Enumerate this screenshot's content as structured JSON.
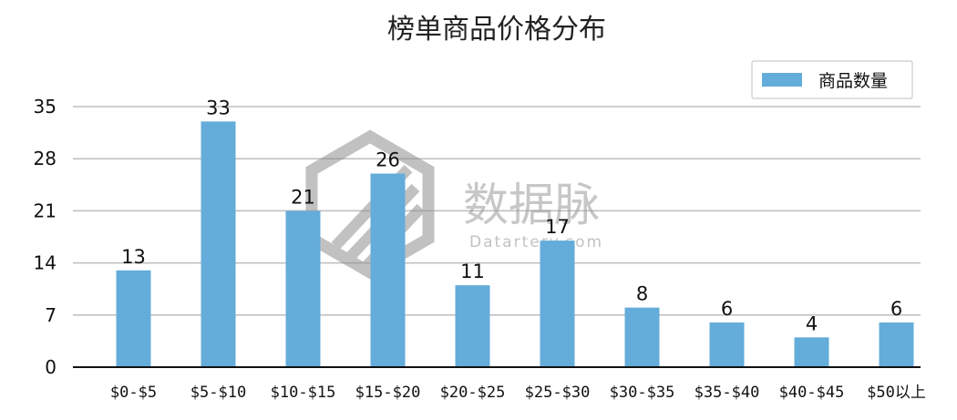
{
  "chart_data": {
    "type": "bar",
    "title": "榜单商品价格分布",
    "categories": [
      "$0-$5",
      "$5-$10",
      "$10-$15",
      "$15-$20",
      "$20-$25",
      "$25-$30",
      "$30-$35",
      "$35-$40",
      "$40-$45",
      "$50以上"
    ],
    "series": [
      {
        "name": "商品数量",
        "values": [
          13,
          33,
          21,
          26,
          11,
          17,
          8,
          6,
          4,
          6
        ]
      }
    ],
    "yticks": [
      0,
      7,
      14,
      21,
      28,
      35
    ],
    "ylim": [
      0,
      35
    ],
    "grid": true,
    "legend": "top-right",
    "bar_color": "#64acd9"
  },
  "watermark": {
    "brand": "数据脉",
    "domain": "Datartery.com"
  }
}
